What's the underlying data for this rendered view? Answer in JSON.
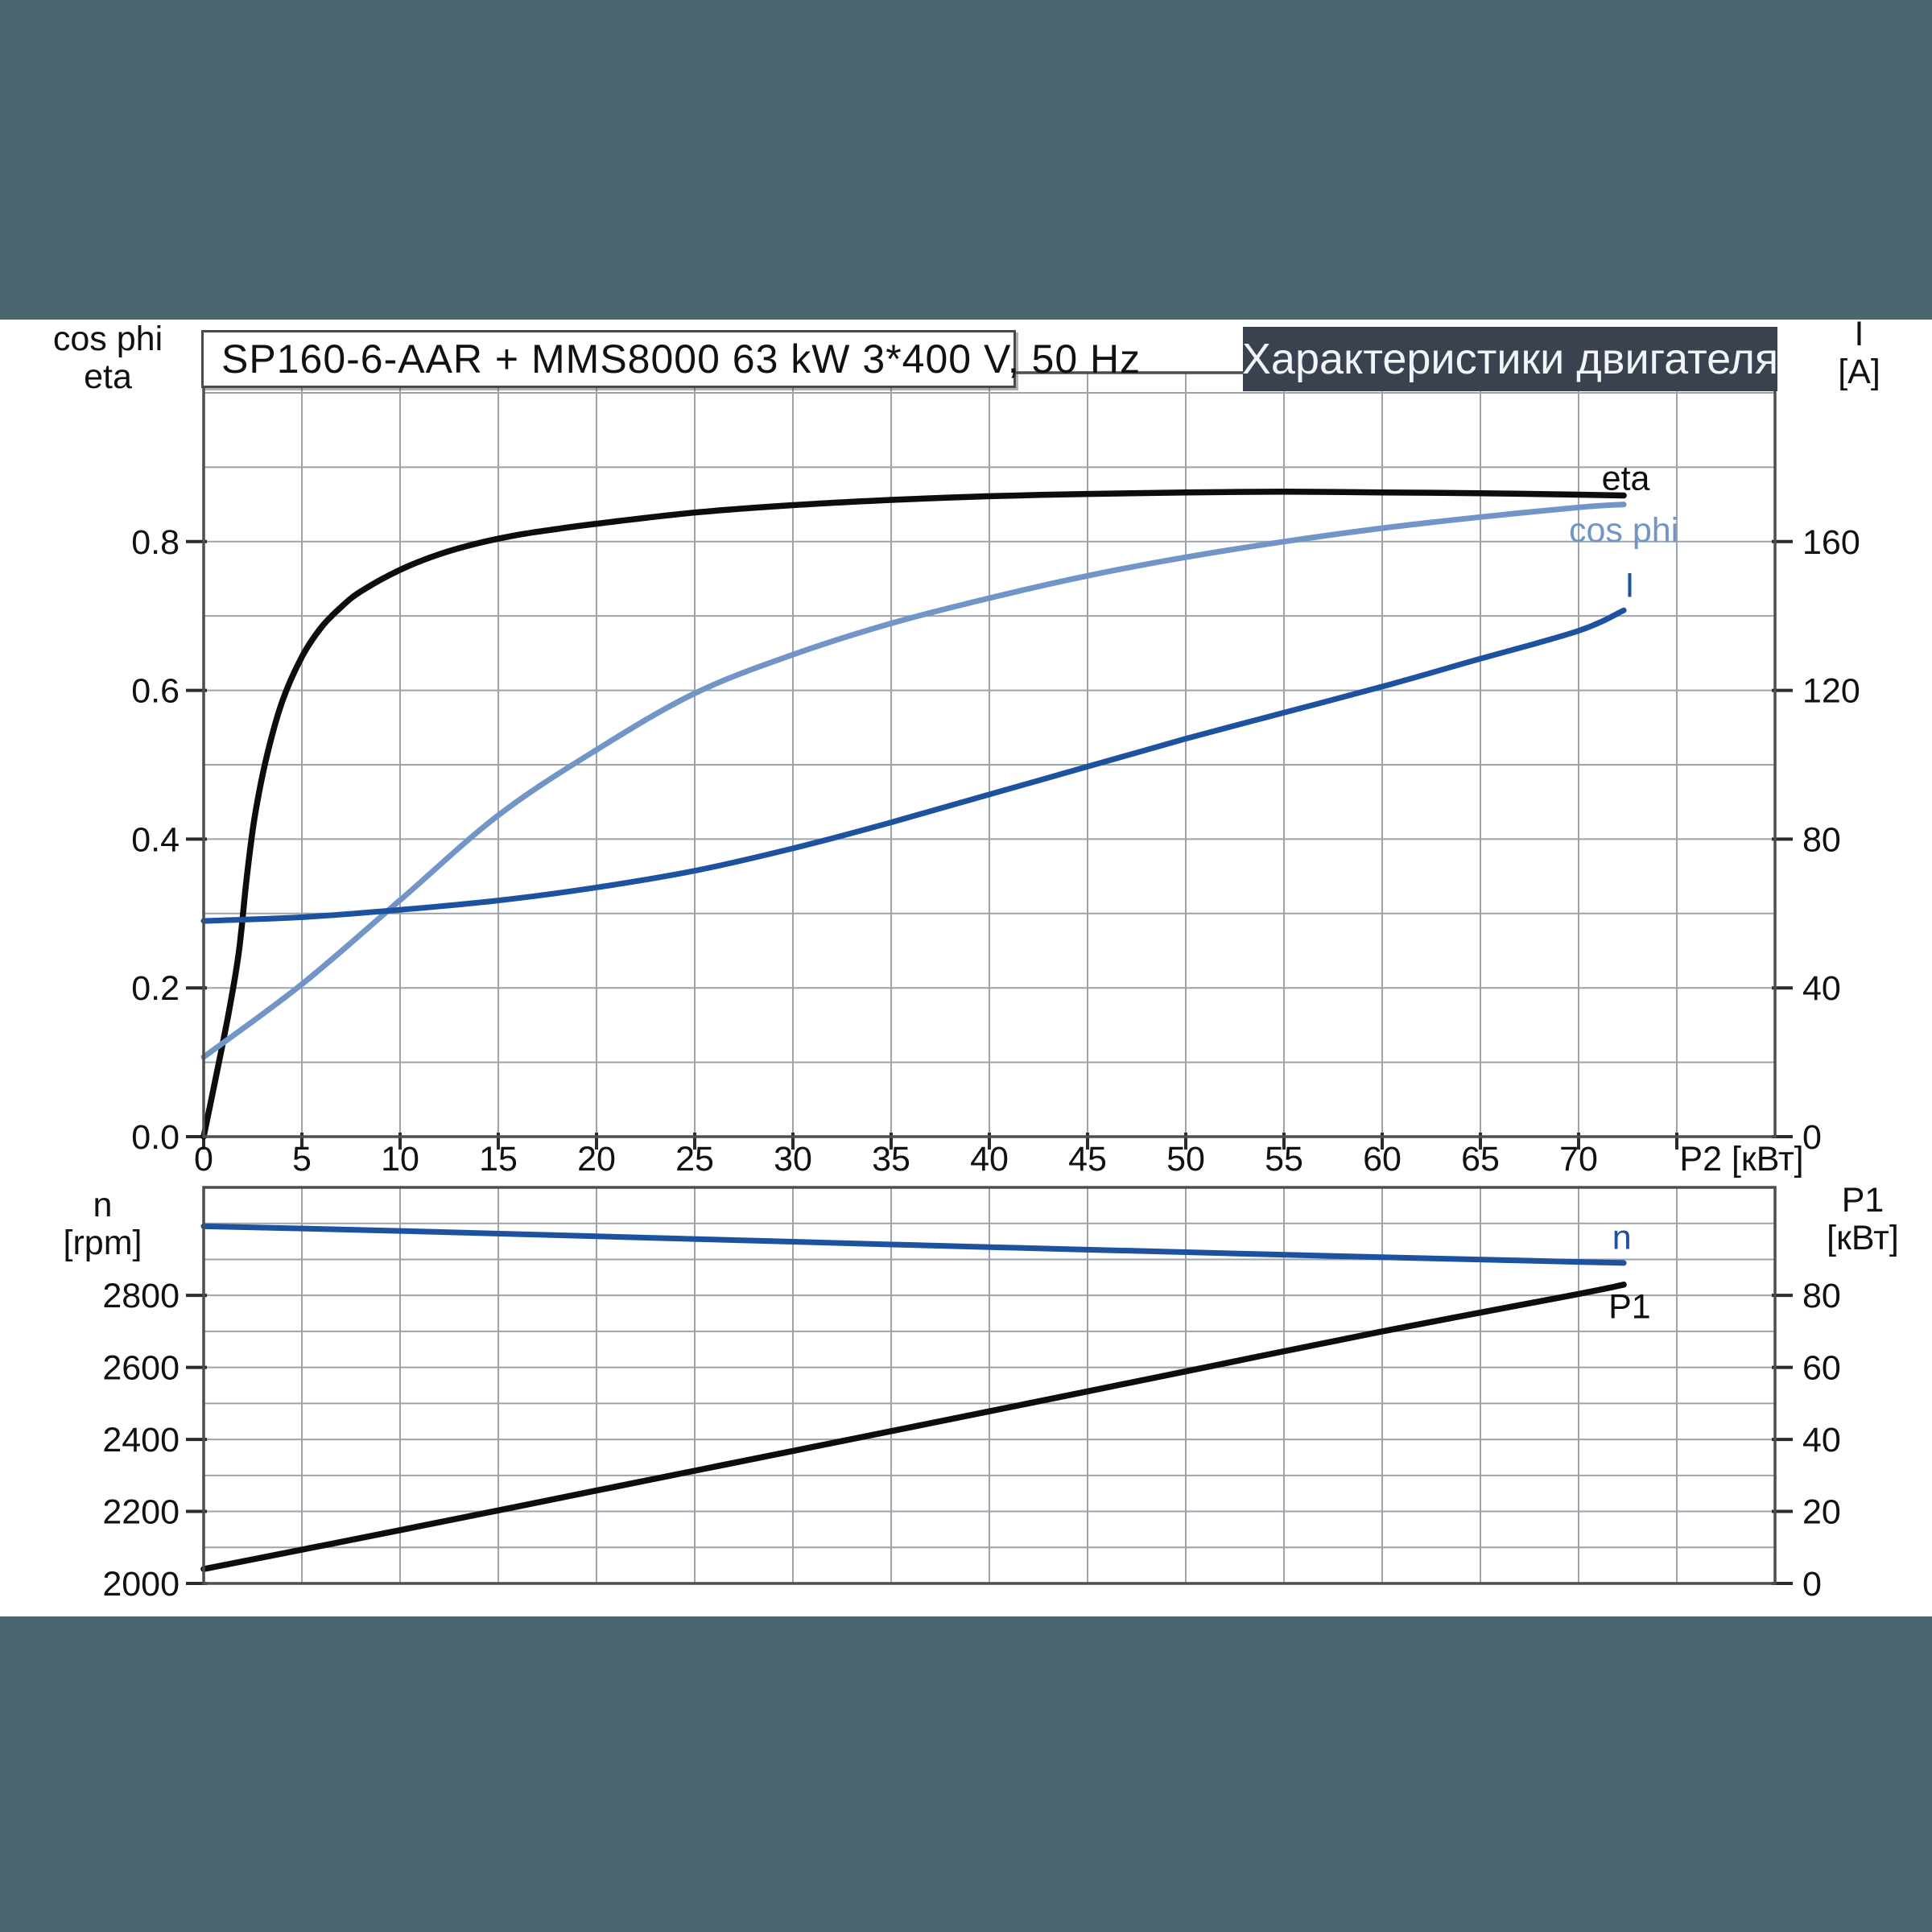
{
  "window": {
    "background": "#4C6670",
    "panel_background": "#ffffff"
  },
  "header": {
    "series_box_text": "SP160-6-AAR + MMS8000   63 kW   3*400 V, 50 Hz",
    "title_box_text": "Характеристики двигателя",
    "title_box_background": "#39424E"
  },
  "axis_titles": {
    "upper_left_line1": "cos phi",
    "upper_left_line2": "eta",
    "upper_right_line1": "I",
    "upper_right_line2": "[A]",
    "lower_left_line1": "n",
    "lower_left_line2": "[rpm]",
    "lower_right_line1": "P1",
    "lower_right_line2": "[кВт]"
  },
  "colors": {
    "eta_curve": "#0d0d0d",
    "cos_phi_curve": "#7095C6",
    "current_curve": "#1C52A0",
    "speed_curve": "#1C52A0",
    "p1_curve": "#0d0d0d",
    "grid": "#9CA3AB",
    "frame": "#4d4d4d",
    "tick": "#2b2b2b",
    "text": "#111111"
  },
  "chart_data": [
    {
      "type": "line",
      "title": "Upper plot: eta, cos phi and current I versus shaft power P2",
      "x": {
        "min": 0,
        "max": 80,
        "grid_step": 5,
        "unit_label": "P2 [кВт]",
        "unit_x": 78.3,
        "ticks": [
          {
            "v": 0,
            "label": "0"
          },
          {
            "v": 5,
            "label": "5"
          },
          {
            "v": 10,
            "label": "10"
          },
          {
            "v": 15,
            "label": "15"
          },
          {
            "v": 20,
            "label": "20"
          },
          {
            "v": 25,
            "label": "25"
          },
          {
            "v": 30,
            "label": "30"
          },
          {
            "v": 35,
            "label": "35"
          },
          {
            "v": 40,
            "label": "40"
          },
          {
            "v": 45,
            "label": "45"
          },
          {
            "v": 50,
            "label": "50"
          },
          {
            "v": 55,
            "label": "55"
          },
          {
            "v": 60,
            "label": "60"
          },
          {
            "v": 65,
            "label": "65"
          },
          {
            "v": 70,
            "label": "70"
          },
          {
            "v": 75,
            "label": ""
          }
        ]
      },
      "y_left": {
        "min": 0,
        "max": 1.027,
        "grid_step": 0.1,
        "grid_max": 1.0,
        "ticks": [
          {
            "v": 0.0,
            "label": "0.0"
          },
          {
            "v": 0.2,
            "label": "0.2"
          },
          {
            "v": 0.4,
            "label": "0.4"
          },
          {
            "v": 0.6,
            "label": "0.6"
          },
          {
            "v": 0.8,
            "label": "0.8"
          }
        ]
      },
      "y_right": {
        "min": 0,
        "max": 205.4,
        "ticks": [
          {
            "v": 0,
            "label": "0"
          },
          {
            "v": 40,
            "label": "40"
          },
          {
            "v": 80,
            "label": "80"
          },
          {
            "v": 120,
            "label": "120"
          },
          {
            "v": 160,
            "label": "160"
          }
        ]
      },
      "series": [
        {
          "name": "eta",
          "axis": "left",
          "color": "#0d0d0d",
          "width": 7.5,
          "points": [
            [
              0,
              0
            ],
            [
              0.7,
              0.09
            ],
            [
              1.3,
              0.17
            ],
            [
              1.8,
              0.25
            ],
            [
              2.2,
              0.35
            ],
            [
              2.6,
              0.43
            ],
            [
              3.2,
              0.51
            ],
            [
              4,
              0.585
            ],
            [
              5,
              0.645
            ],
            [
              6,
              0.685
            ],
            [
              7,
              0.712
            ],
            [
              8,
              0.733
            ],
            [
              10,
              0.762
            ],
            [
              12,
              0.783
            ],
            [
              14,
              0.798
            ],
            [
              16,
              0.809
            ],
            [
              18,
              0.817
            ],
            [
              20,
              0.824
            ],
            [
              25,
              0.839
            ],
            [
              30,
              0.849
            ],
            [
              35,
              0.856
            ],
            [
              40,
              0.861
            ],
            [
              45,
              0.864
            ],
            [
              50,
              0.866
            ],
            [
              55,
              0.867
            ],
            [
              60,
              0.866
            ],
            [
              65,
              0.865
            ],
            [
              70,
              0.863
            ],
            [
              72.3,
              0.862
            ]
          ]
        },
        {
          "name": "cos phi",
          "axis": "left",
          "color": "#7095C6",
          "width": 7,
          "points": [
            [
              0,
              0.107
            ],
            [
              5,
              0.205
            ],
            [
              10,
              0.318
            ],
            [
              15,
              0.432
            ],
            [
              20,
              0.52
            ],
            [
              25,
              0.596
            ],
            [
              30,
              0.648
            ],
            [
              35,
              0.69
            ],
            [
              40,
              0.724
            ],
            [
              45,
              0.754
            ],
            [
              50,
              0.779
            ],
            [
              55,
              0.8
            ],
            [
              60,
              0.818
            ],
            [
              65,
              0.833
            ],
            [
              70,
              0.846
            ],
            [
              72.3,
              0.85
            ]
          ]
        },
        {
          "name": "I",
          "axis": "right",
          "color": "#1C52A0",
          "width": 7,
          "points": [
            [
              0,
              58
            ],
            [
              5,
              59
            ],
            [
              10,
              61
            ],
            [
              15,
              63.5
            ],
            [
              20,
              67
            ],
            [
              25,
              71.5
            ],
            [
              30,
              77.5
            ],
            [
              35,
              84.5
            ],
            [
              40,
              92
            ],
            [
              45,
              99.5
            ],
            [
              50,
              107
            ],
            [
              55,
              114
            ],
            [
              60,
              121
            ],
            [
              65,
              128.5
            ],
            [
              70,
              136
            ],
            [
              72.3,
              141.5
            ]
          ]
        }
      ],
      "curve_labels": [
        {
          "text": "eta",
          "color": "#0d0d0d",
          "x": 72.4,
          "v": 0.886,
          "axis": "left"
        },
        {
          "text": "cos phi",
          "color": "#7095C6",
          "x": 72.3,
          "v": 0.816,
          "axis": "left"
        },
        {
          "text": "I",
          "color": "#1C52A0",
          "x": 72.6,
          "v": 0.742,
          "axis": "left"
        }
      ]
    },
    {
      "type": "line",
      "title": "Lower plot: speed n and input power P1 versus shaft power P2",
      "x": {
        "min": 0,
        "max": 80,
        "grid_step": 5,
        "unit_label": "",
        "unit_x": 0,
        "ticks": []
      },
      "y_left": {
        "min": 2000,
        "max": 3100,
        "grid_step": 100,
        "grid_max": 3000,
        "ticks": [
          {
            "v": 2000,
            "label": "2000"
          },
          {
            "v": 2200,
            "label": "2200"
          },
          {
            "v": 2400,
            "label": "2400"
          },
          {
            "v": 2600,
            "label": "2600"
          },
          {
            "v": 2800,
            "label": "2800"
          }
        ]
      },
      "y_right": {
        "min": 0,
        "max": 110,
        "ticks": [
          {
            "v": 0,
            "label": "0"
          },
          {
            "v": 20,
            "label": "20"
          },
          {
            "v": 40,
            "label": "40"
          },
          {
            "v": 60,
            "label": "60"
          },
          {
            "v": 80,
            "label": "80"
          }
        ]
      },
      "series": [
        {
          "name": "n",
          "axis": "left",
          "color": "#1C52A0",
          "width": 7,
          "points": [
            [
              0,
              2992
            ],
            [
              10,
              2979
            ],
            [
              20,
              2964
            ],
            [
              30,
              2949
            ],
            [
              40,
              2934
            ],
            [
              50,
              2920
            ],
            [
              60,
              2906
            ],
            [
              70,
              2893
            ],
            [
              72.3,
              2890
            ]
          ]
        },
        {
          "name": "P1",
          "axis": "right",
          "color": "#0d0d0d",
          "width": 7.5,
          "points": [
            [
              0,
              4
            ],
            [
              10,
              14.8
            ],
            [
              20,
              25.8
            ],
            [
              30,
              36.8
            ],
            [
              40,
              47.8
            ],
            [
              50,
              58.9
            ],
            [
              60,
              70
            ],
            [
              70,
              80.4
            ],
            [
              72.3,
              83
            ]
          ]
        }
      ],
      "curve_labels": [
        {
          "text": "n",
          "color": "#1C52A0",
          "x": 72.2,
          "v": 2962,
          "axis": "left"
        },
        {
          "text": "P1",
          "color": "#0d0d0d",
          "x": 72.6,
          "v": 77,
          "axis": "right"
        }
      ]
    }
  ]
}
